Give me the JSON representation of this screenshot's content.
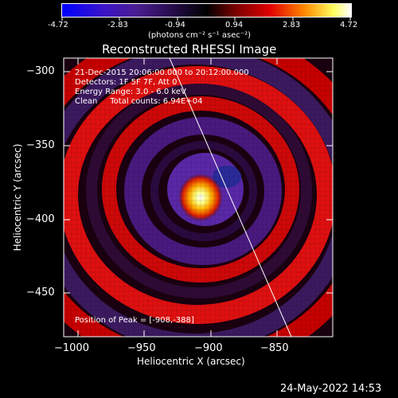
{
  "colorbar": {
    "ticks": [
      "-4.72",
      "-2.83",
      "-0.94",
      "0.94",
      "2.83",
      "4.72"
    ],
    "unit_label": "(photons cm⁻² s⁻¹ asec⁻²)",
    "colors": [
      "#0000ff",
      "#5a1cc7",
      "#3b1a6e",
      "#000000",
      "#8e0000",
      "#ff0000",
      "#ff9a00",
      "#ffff7a",
      "#ffffff"
    ]
  },
  "plot": {
    "title": "Reconstructed RHESSI Image",
    "info_lines": [
      "21-Dec-2015 20:06:00.000 to 20:12:00.000",
      "Detectors: 1F 5F 7F, Att 0",
      "Energy Range: 3.0 - 6.0 keV",
      "Clean     Total counts: 6.94E+04"
    ],
    "peak_label": "Position of Peak = [-908,-388]",
    "xlabel": "Heliocentric X (arcsec)",
    "ylabel": "Heliocentric Y (arcsec)",
    "xticks": [
      "−1000",
      "−950",
      "−900",
      "−850"
    ],
    "yticks": [
      "−300",
      "−350",
      "−400",
      "−450"
    ]
  },
  "timestamp": "24-May-2022 14:53"
}
